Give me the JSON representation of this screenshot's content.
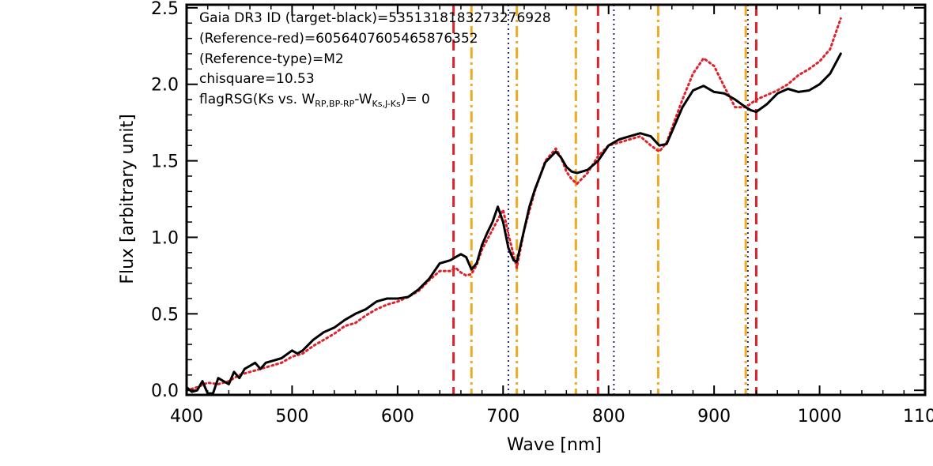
{
  "chart_data": {
    "type": "line",
    "xlabel_main": "Wave",
    "xlabel_unit": "[nm]",
    "ylabel_main": "Flux",
    "ylabel_unit": "[arbitrary unit]",
    "xlim": [
      400,
      1100
    ],
    "ylim": [
      -0.03,
      2.52
    ],
    "x_ticks": [
      {
        "v": 400,
        "label": "400"
      },
      {
        "v": 500,
        "label": "500"
      },
      {
        "v": 600,
        "label": "600"
      },
      {
        "v": 700,
        "label": "700"
      },
      {
        "v": 800,
        "label": "800"
      },
      {
        "v": 900,
        "label": "900"
      },
      {
        "v": 1000,
        "label": "1000"
      },
      {
        "v": 1100,
        "label": "1100"
      }
    ],
    "y_ticks": [
      {
        "v": 0.0,
        "label": "0.0"
      },
      {
        "v": 0.5,
        "label": "0.5"
      },
      {
        "v": 1.0,
        "label": "1.0"
      },
      {
        "v": 1.5,
        "label": "1.5"
      },
      {
        "v": 2.0,
        "label": "2.0"
      },
      {
        "v": 2.5,
        "label": "2.5"
      }
    ],
    "annotations": {
      "line1": "Gaia DR3 ID (target-black)=5351318183273276928",
      "line2": "(Reference-red)=6056407605465876352",
      "line3": "(Reference-type)=M2",
      "line4": "chisquare=10.53",
      "line5_prefix": "flagRSG(Ks vs. W",
      "line5_sub1": "RP,BP-RP",
      "line5_mid": "-W",
      "line5_sub2": "Ks,J-Ks",
      "line5_suffix": ")= 0"
    },
    "vlines": [
      {
        "x": 653,
        "style": "dashed",
        "color": "#e0222b"
      },
      {
        "x": 790,
        "style": "dashed",
        "color": "#e0222b"
      },
      {
        "x": 940,
        "style": "dashed",
        "color": "#e0222b"
      },
      {
        "x": 670,
        "style": "dashdot",
        "color": "#eeaa22"
      },
      {
        "x": 713,
        "style": "dashdot",
        "color": "#eeaa22"
      },
      {
        "x": 769,
        "style": "dashdot",
        "color": "#eeaa22"
      },
      {
        "x": 847,
        "style": "dashdot",
        "color": "#eeaa22"
      },
      {
        "x": 930,
        "style": "dashdot",
        "color": "#eeaa22"
      },
      {
        "x": 705,
        "style": "dotted",
        "color": "#24246e"
      },
      {
        "x": 805,
        "style": "dotted",
        "color": "#24246e"
      },
      {
        "x": 932,
        "style": "dotted",
        "color": "#24246e"
      }
    ],
    "series": [
      {
        "role": "target",
        "color": "#000000",
        "style": "solid",
        "x": [
          400,
          405,
          410,
          415,
          420,
          425,
          430,
          435,
          440,
          445,
          450,
          455,
          460,
          465,
          470,
          475,
          480,
          490,
          500,
          505,
          510,
          520,
          530,
          540,
          550,
          560,
          570,
          580,
          590,
          600,
          610,
          620,
          630,
          640,
          645,
          650,
          655,
          660,
          665,
          670,
          675,
          680,
          685,
          690,
          695,
          700,
          705,
          710,
          713,
          718,
          725,
          730,
          740,
          750,
          755,
          760,
          765,
          770,
          780,
          790,
          800,
          810,
          820,
          830,
          840,
          848,
          855,
          870,
          880,
          890,
          900,
          910,
          920,
          930,
          935,
          940,
          950,
          960,
          970,
          980,
          990,
          1000,
          1010,
          1020
        ],
        "y": [
          0.02,
          -0.01,
          0.0,
          0.06,
          -0.02,
          -0.02,
          0.08,
          0.06,
          0.04,
          0.12,
          0.08,
          0.14,
          0.16,
          0.18,
          0.14,
          0.18,
          0.19,
          0.21,
          0.26,
          0.24,
          0.26,
          0.33,
          0.38,
          0.41,
          0.46,
          0.5,
          0.53,
          0.58,
          0.6,
          0.6,
          0.61,
          0.66,
          0.73,
          0.83,
          0.84,
          0.85,
          0.87,
          0.89,
          0.87,
          0.79,
          0.83,
          0.95,
          1.03,
          1.1,
          1.2,
          1.1,
          0.93,
          0.85,
          0.84,
          0.99,
          1.2,
          1.31,
          1.49,
          1.56,
          1.52,
          1.46,
          1.43,
          1.42,
          1.44,
          1.5,
          1.6,
          1.64,
          1.66,
          1.68,
          1.66,
          1.6,
          1.61,
          1.85,
          1.96,
          1.99,
          1.95,
          1.94,
          1.9,
          1.85,
          1.83,
          1.82,
          1.87,
          1.94,
          1.97,
          1.95,
          1.96,
          2.0,
          2.07,
          2.2
        ]
      },
      {
        "role": "reference",
        "color": "#e0222b",
        "style": "dotted",
        "x": [
          400,
          410,
          420,
          430,
          440,
          450,
          460,
          470,
          480,
          490,
          500,
          510,
          520,
          530,
          540,
          550,
          560,
          570,
          580,
          590,
          600,
          610,
          620,
          630,
          640,
          650,
          655,
          660,
          665,
          670,
          675,
          680,
          690,
          700,
          705,
          713,
          720,
          730,
          740,
          750,
          755,
          760,
          765,
          770,
          780,
          790,
          800,
          810,
          820,
          830,
          840,
          848,
          855,
          870,
          880,
          890,
          900,
          910,
          920,
          930,
          940,
          950,
          960,
          970,
          980,
          990,
          1000,
          1010,
          1020
        ],
        "y": [
          0.0,
          0.02,
          0.05,
          0.04,
          0.06,
          0.1,
          0.12,
          0.14,
          0.16,
          0.18,
          0.22,
          0.24,
          0.29,
          0.33,
          0.37,
          0.42,
          0.44,
          0.49,
          0.53,
          0.56,
          0.58,
          0.61,
          0.65,
          0.72,
          0.78,
          0.78,
          0.8,
          0.77,
          0.75,
          0.76,
          0.82,
          0.92,
          1.05,
          1.18,
          1.02,
          0.8,
          1.05,
          1.3,
          1.5,
          1.58,
          1.52,
          1.43,
          1.38,
          1.35,
          1.42,
          1.53,
          1.6,
          1.62,
          1.64,
          1.66,
          1.6,
          1.56,
          1.62,
          1.9,
          2.07,
          2.17,
          2.12,
          1.98,
          1.85,
          1.85,
          1.9,
          1.93,
          1.96,
          2.0,
          2.06,
          2.1,
          2.15,
          2.23,
          2.43
        ]
      }
    ]
  }
}
